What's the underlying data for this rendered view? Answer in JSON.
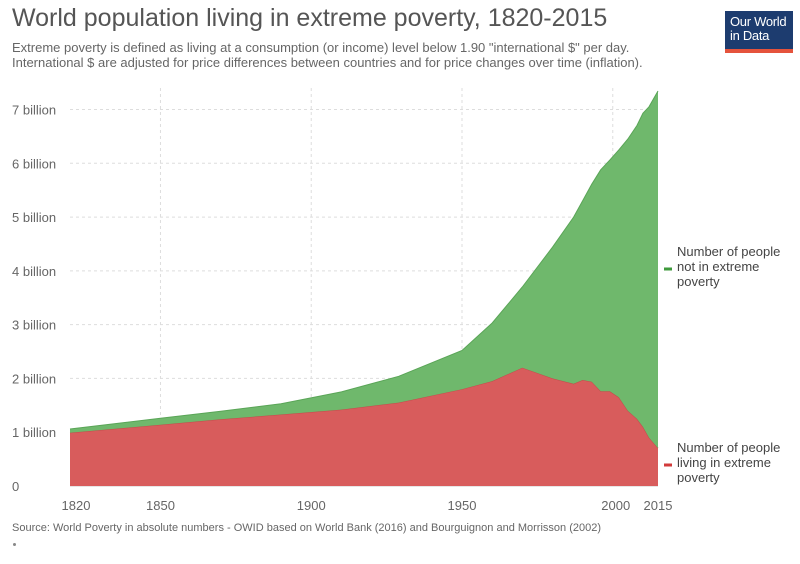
{
  "header": {
    "title": "World population living in extreme poverty, 1820-2015",
    "subtitle_line1": "Extreme poverty is defined as living at a consumption (or income) level below 1.90 \"international $\" per day.",
    "subtitle_line2": "International $ are adjusted for price differences between countries and for price changes over time (inflation)."
  },
  "logo": {
    "line1": "Our World",
    "line2": "in Data",
    "bg_color": "#1d3c6f",
    "accent_color": "#e5533c"
  },
  "footer": {
    "source": "Source: World Poverty in absolute numbers - OWID based on World Bank (2016) and Bourguignon and Morrisson (2002)"
  },
  "chart_data": {
    "type": "area",
    "stacked": true,
    "title": "World population living in extreme poverty, 1820-2015",
    "xlabel": "",
    "ylabel": "",
    "xlim": [
      1820,
      2015
    ],
    "ylim": [
      0,
      7400000000
    ],
    "grid": true,
    "legend_position": "right",
    "x_ticks": [
      1820,
      1850,
      1900,
      1950,
      2000,
      2015
    ],
    "y_ticks": [
      {
        "value": 0,
        "label": "0"
      },
      {
        "value": 1000000000,
        "label": "1 billion"
      },
      {
        "value": 2000000000,
        "label": "2 billion"
      },
      {
        "value": 3000000000,
        "label": "3 billion"
      },
      {
        "value": 4000000000,
        "label": "4 billion"
      },
      {
        "value": 5000000000,
        "label": "5 billion"
      },
      {
        "value": 6000000000,
        "label": "6 billion"
      },
      {
        "value": 7000000000,
        "label": "7 billion"
      }
    ],
    "x": [
      1820,
      1850,
      1870,
      1890,
      1910,
      1929,
      1950,
      1960,
      1970,
      1980,
      1987,
      1990,
      1993,
      1996,
      1999,
      2002,
      2005,
      2008,
      2010,
      2012,
      2015
    ],
    "series": [
      {
        "name": "Number of people living in extreme poverty",
        "color": "#d85c5c",
        "values": [
          990000000,
          1140000000,
          1240000000,
          1330000000,
          1420000000,
          1550000000,
          1800000000,
          1950000000,
          2200000000,
          2000000000,
          1900000000,
          1970000000,
          1940000000,
          1760000000,
          1760000000,
          1650000000,
          1400000000,
          1250000000,
          1100000000,
          900000000,
          705000000
        ]
      },
      {
        "name": "Number of people not in extreme poverty",
        "color": "#6fb86c",
        "values": [
          70000000,
          120000000,
          150000000,
          200000000,
          330000000,
          490000000,
          720000000,
          1080000000,
          1500000000,
          2440000000,
          3100000000,
          3330000000,
          3670000000,
          4120000000,
          4300000000,
          4600000000,
          5050000000,
          5450000000,
          5830000000,
          6150000000,
          6640000000
        ]
      }
    ],
    "legend": [
      {
        "line1": "Number of people",
        "line2": "not in extreme",
        "line3": "poverty",
        "color": "#3f9a3c"
      },
      {
        "line1": "Number of people",
        "line2": "living in extreme",
        "line3": "poverty",
        "color": "#d23b3b"
      }
    ]
  }
}
